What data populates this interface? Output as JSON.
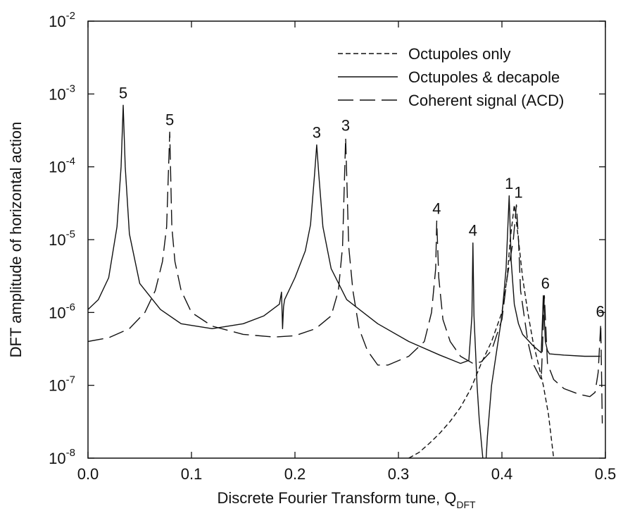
{
  "chart_data": {
    "type": "line",
    "xlabel": "Discrete Fourier Transform tune, Q",
    "xlabel_sub": "DFT",
    "ylabel": "DFT amplitude of horizontal action",
    "xlim": [
      0.0,
      0.5
    ],
    "ylim": [
      1e-08,
      0.01
    ],
    "yscale": "log",
    "grid": false,
    "legend_position": "top-right",
    "x_ticks": [
      {
        "value": 0.0,
        "label": "0.0"
      },
      {
        "value": 0.1,
        "label": "0.1"
      },
      {
        "value": 0.2,
        "label": "0.2"
      },
      {
        "value": 0.3,
        "label": "0.3"
      },
      {
        "value": 0.4,
        "label": "0.4"
      },
      {
        "value": 0.5,
        "label": "0.5"
      }
    ],
    "y_ticks": [
      {
        "value": 1e-08,
        "base": "10",
        "exp": "-8"
      },
      {
        "value": 1e-07,
        "base": "10",
        "exp": "-7"
      },
      {
        "value": 1e-06,
        "base": "10",
        "exp": "-6"
      },
      {
        "value": 1e-05,
        "base": "10",
        "exp": "-5"
      },
      {
        "value": 0.0001,
        "base": "10",
        "exp": "-4"
      },
      {
        "value": 0.001,
        "base": "10",
        "exp": "-3"
      },
      {
        "value": 0.01,
        "base": "10",
        "exp": "-2"
      }
    ],
    "series": [
      {
        "name": "Octupoles only",
        "style": "short-dash",
        "x": [
          0.31,
          0.32,
          0.33,
          0.34,
          0.35,
          0.36,
          0.37,
          0.38,
          0.39,
          0.4,
          0.405,
          0.408,
          0.412,
          0.416,
          0.42,
          0.425,
          0.43,
          0.435,
          0.44,
          0.445,
          0.45
        ],
        "y": [
          1e-08,
          1.2e-08,
          1.6e-08,
          2.2e-08,
          3.2e-08,
          5e-08,
          9e-08,
          2e-07,
          4e-07,
          1e-06,
          3e-06,
          1e-05,
          3e-05,
          1e-05,
          3e-06,
          1e-06,
          4e-07,
          2e-07,
          1e-07,
          4e-08,
          1e-08
        ]
      },
      {
        "name": "Octupoles & decapole",
        "style": "solid",
        "x": [
          0.0,
          0.01,
          0.02,
          0.028,
          0.032,
          0.034,
          0.036,
          0.04,
          0.05,
          0.07,
          0.09,
          0.12,
          0.15,
          0.17,
          0.185,
          0.187,
          0.188,
          0.189,
          0.19,
          0.2,
          0.21,
          0.215,
          0.219,
          0.221,
          0.223,
          0.227,
          0.235,
          0.25,
          0.28,
          0.31,
          0.34,
          0.36,
          0.368,
          0.371,
          0.372,
          0.373,
          0.376,
          0.378,
          0.381,
          0.3835,
          0.386,
          0.39,
          0.395,
          0.4,
          0.404,
          0.407,
          0.409,
          0.412,
          0.416,
          0.42,
          0.43,
          0.438,
          0.44,
          0.442,
          0.444,
          0.446,
          0.46,
          0.48,
          0.495
        ],
        "y": [
          1.1e-06,
          1.5e-06,
          3e-06,
          1.5e-05,
          0.0001,
          0.0007,
          0.0001,
          1.2e-05,
          2.5e-06,
          1.1e-06,
          7e-07,
          6e-07,
          7e-07,
          9e-07,
          1.3e-06,
          1.9e-06,
          6e-07,
          1.2e-06,
          1.5e-06,
          3e-06,
          7e-06,
          1.6e-05,
          8e-05,
          0.0002,
          8e-05,
          1.5e-05,
          4e-06,
          1.5e-06,
          7e-07,
          4e-07,
          2.6e-07,
          2e-07,
          2.2e-07,
          9e-07,
          9e-06,
          9e-07,
          1e-07,
          3.5e-08,
          1.2e-08,
          5e-09,
          2e-08,
          1e-07,
          3e-07,
          9e-07,
          4e-06,
          4e-05,
          5e-06,
          1.3e-06,
          7e-07,
          5e-07,
          3.5e-07,
          2.8e-07,
          1.7e-06,
          4e-07,
          3e-07,
          2.7e-07,
          2.6e-07,
          2.5e-07,
          2.5e-07
        ]
      },
      {
        "name": "Coherent signal (ACD)",
        "style": "long-dash",
        "x": [
          0.0,
          0.02,
          0.04,
          0.055,
          0.065,
          0.072,
          0.076,
          0.079,
          0.081,
          0.084,
          0.09,
          0.1,
          0.12,
          0.15,
          0.18,
          0.2,
          0.22,
          0.235,
          0.242,
          0.246,
          0.249,
          0.252,
          0.256,
          0.262,
          0.27,
          0.28,
          0.29,
          0.31,
          0.325,
          0.332,
          0.336,
          0.337,
          0.339,
          0.343,
          0.35,
          0.36,
          0.372,
          0.38,
          0.39,
          0.4,
          0.405,
          0.411,
          0.414,
          0.416,
          0.418,
          0.421,
          0.425,
          0.43,
          0.438,
          0.441,
          0.444,
          0.45,
          0.46,
          0.475,
          0.485,
          0.49,
          0.493,
          0.4955,
          0.497
        ],
        "y": [
          4e-07,
          4.5e-07,
          6e-07,
          1e-06,
          2e-06,
          5e-06,
          1.5e-05,
          0.0003,
          1.5e-05,
          5e-06,
          2e-06,
          1e-06,
          6.5e-07,
          5e-07,
          4.6e-07,
          4.8e-07,
          6e-07,
          9e-07,
          2e-06,
          8e-06,
          0.00025,
          8e-06,
          2e-06,
          6e-07,
          3e-07,
          1.9e-07,
          1.9e-07,
          2.5e-07,
          4e-07,
          1e-06,
          4e-06,
          1.8e-05,
          3e-06,
          8e-07,
          4e-07,
          2.5e-07,
          2e-07,
          2.1e-07,
          3e-07,
          8e-07,
          3e-06,
          1e-05,
          3e-05,
          1e-05,
          2e-06,
          1e-06,
          4e-07,
          2e-07,
          1.2e-07,
          1.7e-06,
          2e-07,
          1.2e-07,
          9e-08,
          7.5e-08,
          7e-08,
          8e-08,
          1.5e-07,
          7e-07,
          3e-08
        ]
      }
    ],
    "annotations": [
      {
        "text": "5",
        "x": 0.034,
        "y": 0.0007
      },
      {
        "text": "5",
        "x": 0.079,
        "y": 0.0003
      },
      {
        "text": "3",
        "x": 0.221,
        "y": 0.0002
      },
      {
        "text": "3",
        "x": 0.249,
        "y": 0.00025
      },
      {
        "text": "4",
        "x": 0.337,
        "y": 1.8e-05
      },
      {
        "text": "4",
        "x": 0.372,
        "y": 9e-06
      },
      {
        "text": "1",
        "x": 0.407,
        "y": 4e-05
      },
      {
        "text": "1",
        "x": 0.416,
        "y": 3e-05
      },
      {
        "text": "6",
        "x": 0.442,
        "y": 1.7e-06
      },
      {
        "text": "6",
        "x": 0.495,
        "y": 7e-07
      }
    ]
  }
}
